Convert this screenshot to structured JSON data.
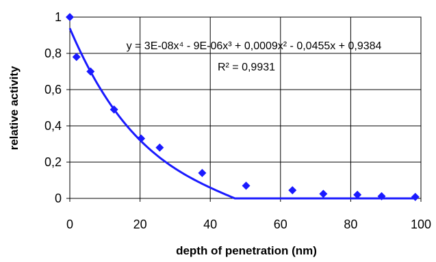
{
  "chart_data": {
    "type": "scatter",
    "xlabel": "depth of penetration (nm)",
    "ylabel": "relative activity",
    "xlim": [
      0,
      100
    ],
    "ylim": [
      0,
      1
    ],
    "x_ticks": [
      "0",
      "20",
      "40",
      "60",
      "80",
      "100"
    ],
    "y_ticks": [
      "0",
      "0,2",
      "0,4",
      "0,6",
      "0,8",
      "1"
    ],
    "grid": "horizontal and vertical",
    "series": [
      {
        "type": "scatter",
        "marker": "diamond",
        "color": "#1a1aff",
        "x": [
          0,
          1.9,
          5.9,
          12.6,
          20.3,
          25.6,
          37.7,
          50.2,
          63.4,
          72.2,
          81.9,
          88.8,
          98.4
        ],
        "y": [
          1.0,
          0.78,
          0.7,
          0.49,
          0.33,
          0.28,
          0.14,
          0.07,
          0.045,
          0.025,
          0.02,
          0.012,
          0.008
        ]
      },
      {
        "type": "line",
        "color": "#1a1aff"
      }
    ],
    "trendline": {
      "equation": "y = 3E-08x⁴ - 9E-06x³ + 0,0009x² - 0,0455x + 0,9384",
      "r_squared": "R² = 0,9931"
    }
  }
}
